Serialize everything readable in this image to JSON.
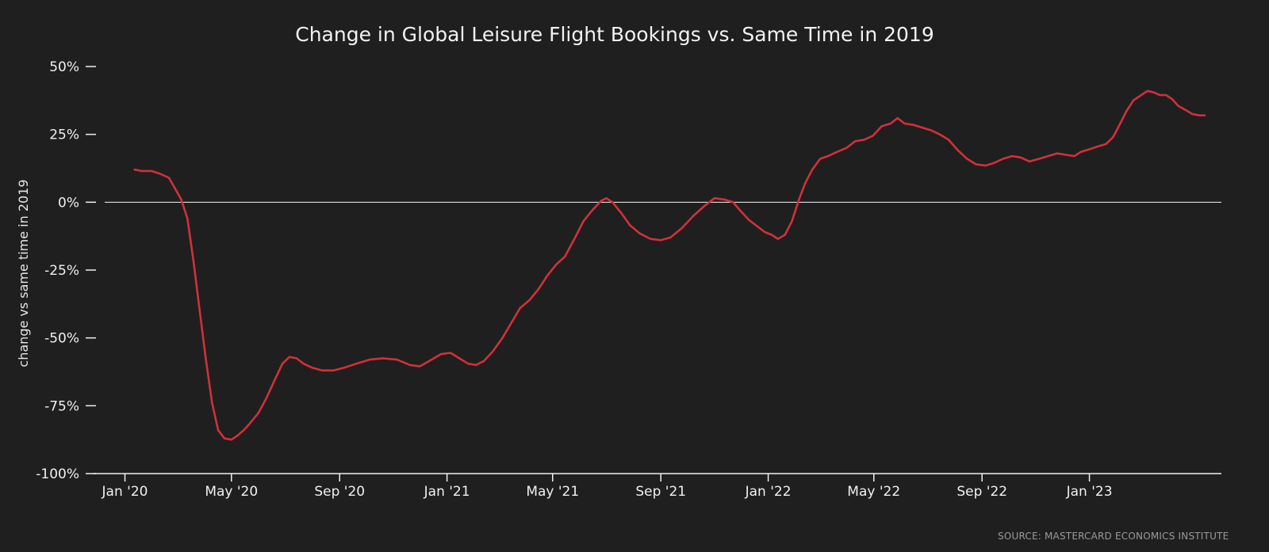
{
  "chart_data": {
    "type": "line",
    "title": "Change in Global Leisure Flight Bookings vs. Same Time in 2019",
    "xlabel": "",
    "ylabel": "change vs same time in 2019",
    "ylim": [
      -100,
      50
    ],
    "xlim": [
      "2019-12-09",
      "2023-05-31"
    ],
    "y_ticks": [
      {
        "value": 50,
        "label": "50%"
      },
      {
        "value": 25,
        "label": "25%"
      },
      {
        "value": 0,
        "label": "0%"
      },
      {
        "value": -25,
        "label": "-25%"
      },
      {
        "value": -50,
        "label": "-50%"
      },
      {
        "value": -75,
        "label": "-75%"
      },
      {
        "value": -100,
        "label": "-100%"
      }
    ],
    "x_ticks": [
      {
        "date": "2020-01-01",
        "label": "Jan '20"
      },
      {
        "date": "2020-05-01",
        "label": "May '20"
      },
      {
        "date": "2020-09-01",
        "label": "Sep '20"
      },
      {
        "date": "2021-01-01",
        "label": "Jan '21"
      },
      {
        "date": "2021-05-01",
        "label": "May '21"
      },
      {
        "date": "2021-09-01",
        "label": "Sep '21"
      },
      {
        "date": "2022-01-01",
        "label": "Jan '22"
      },
      {
        "date": "2022-05-01",
        "label": "May '22"
      },
      {
        "date": "2022-09-01",
        "label": "Sep '22"
      },
      {
        "date": "2023-01-01",
        "label": "Jan '23"
      }
    ],
    "zero_line": true,
    "grid": false,
    "source": "SOURCE: MASTERCARD ECONOMICS INSTITUTE",
    "series": [
      {
        "color": "#d0313a",
        "points": [
          [
            "2020-01-12",
            12
          ],
          [
            "2020-01-20",
            11.5
          ],
          [
            "2020-01-31",
            11.5
          ],
          [
            "2020-02-10",
            10.5
          ],
          [
            "2020-02-20",
            9
          ],
          [
            "2020-02-27",
            5
          ],
          [
            "2020-03-05",
            1
          ],
          [
            "2020-03-12",
            -6
          ],
          [
            "2020-03-19",
            -22
          ],
          [
            "2020-03-26",
            -40
          ],
          [
            "2020-04-02",
            -58
          ],
          [
            "2020-04-09",
            -74
          ],
          [
            "2020-04-16",
            -84
          ],
          [
            "2020-04-23",
            -87
          ],
          [
            "2020-05-01",
            -87.5
          ],
          [
            "2020-05-08",
            -86
          ],
          [
            "2020-05-15",
            -84
          ],
          [
            "2020-05-22",
            -81.5
          ],
          [
            "2020-06-01",
            -77.5
          ],
          [
            "2020-06-10",
            -72
          ],
          [
            "2020-06-20",
            -65
          ],
          [
            "2020-06-28",
            -59.5
          ],
          [
            "2020-07-06",
            -57
          ],
          [
            "2020-07-14",
            -57.5
          ],
          [
            "2020-07-22",
            -59.5
          ],
          [
            "2020-08-01",
            -61
          ],
          [
            "2020-08-12",
            -62
          ],
          [
            "2020-08-25",
            -62
          ],
          [
            "2020-09-06",
            -61
          ],
          [
            "2020-09-20",
            -59.5
          ],
          [
            "2020-10-05",
            -58
          ],
          [
            "2020-10-20",
            -57.5
          ],
          [
            "2020-11-05",
            -58
          ],
          [
            "2020-11-20",
            -60
          ],
          [
            "2020-12-01",
            -60.5
          ],
          [
            "2020-12-12",
            -58.5
          ],
          [
            "2020-12-25",
            -56
          ],
          [
            "2021-01-05",
            -55.5
          ],
          [
            "2021-01-15",
            -57.5
          ],
          [
            "2021-01-25",
            -59.5
          ],
          [
            "2021-02-03",
            -60
          ],
          [
            "2021-02-12",
            -58.5
          ],
          [
            "2021-02-22",
            -55
          ],
          [
            "2021-03-05",
            -50
          ],
          [
            "2021-03-15",
            -44.5
          ],
          [
            "2021-03-25",
            -39
          ],
          [
            "2021-04-05",
            -36
          ],
          [
            "2021-04-15",
            -32
          ],
          [
            "2021-04-25",
            -27
          ],
          [
            "2021-05-05",
            -23
          ],
          [
            "2021-05-15",
            -20
          ],
          [
            "2021-05-25",
            -14
          ],
          [
            "2021-06-05",
            -7
          ],
          [
            "2021-06-15",
            -3
          ],
          [
            "2021-06-25",
            0.5
          ],
          [
            "2021-07-01",
            1.5
          ],
          [
            "2021-07-08",
            0
          ],
          [
            "2021-07-18",
            -4
          ],
          [
            "2021-07-28",
            -8.5
          ],
          [
            "2021-08-08",
            -11.5
          ],
          [
            "2021-08-20",
            -13.5
          ],
          [
            "2021-09-01",
            -14
          ],
          [
            "2021-09-12",
            -13
          ],
          [
            "2021-09-25",
            -9.5
          ],
          [
            "2021-10-08",
            -5
          ],
          [
            "2021-10-20",
            -1.5
          ],
          [
            "2021-11-01",
            1.5
          ],
          [
            "2021-11-12",
            1
          ],
          [
            "2021-11-22",
            0
          ],
          [
            "2021-11-30",
            -3
          ],
          [
            "2021-12-10",
            -6.5
          ],
          [
            "2021-12-20",
            -9
          ],
          [
            "2021-12-28",
            -11
          ],
          [
            "2022-01-05",
            -12
          ],
          [
            "2022-01-12",
            -13.5
          ],
          [
            "2022-01-20",
            -12
          ],
          [
            "2022-01-28",
            -7
          ],
          [
            "2022-02-05",
            1
          ],
          [
            "2022-02-12",
            7
          ],
          [
            "2022-02-20",
            12
          ],
          [
            "2022-03-01",
            16
          ],
          [
            "2022-03-10",
            17
          ],
          [
            "2022-03-20",
            18.5
          ],
          [
            "2022-03-31",
            20
          ],
          [
            "2022-04-10",
            22.5
          ],
          [
            "2022-04-20",
            23
          ],
          [
            "2022-04-30",
            24.5
          ],
          [
            "2022-05-10",
            28
          ],
          [
            "2022-05-20",
            29
          ],
          [
            "2022-05-28",
            31
          ],
          [
            "2022-06-05",
            29
          ],
          [
            "2022-06-15",
            28.5
          ],
          [
            "2022-06-25",
            27.5
          ],
          [
            "2022-07-05",
            26.5
          ],
          [
            "2022-07-15",
            25
          ],
          [
            "2022-07-25",
            23
          ],
          [
            "2022-08-05",
            19
          ],
          [
            "2022-08-15",
            16
          ],
          [
            "2022-08-25",
            14
          ],
          [
            "2022-09-05",
            13.5
          ],
          [
            "2022-09-15",
            14.5
          ],
          [
            "2022-09-25",
            16
          ],
          [
            "2022-10-05",
            17
          ],
          [
            "2022-10-15",
            16.5
          ],
          [
            "2022-10-25",
            15
          ],
          [
            "2022-11-05",
            16
          ],
          [
            "2022-11-15",
            17
          ],
          [
            "2022-11-25",
            18
          ],
          [
            "2022-12-05",
            17.5
          ],
          [
            "2022-12-15",
            17
          ],
          [
            "2022-12-22",
            18.5
          ],
          [
            "2023-01-01",
            19.5
          ],
          [
            "2023-01-10",
            20.5
          ],
          [
            "2023-01-20",
            21.5
          ],
          [
            "2023-01-28",
            24
          ],
          [
            "2023-02-05",
            29
          ],
          [
            "2023-02-12",
            33.5
          ],
          [
            "2023-02-20",
            37.5
          ],
          [
            "2023-03-01",
            39.5
          ],
          [
            "2023-03-08",
            41
          ],
          [
            "2023-03-15",
            40.5
          ],
          [
            "2023-03-22",
            39.5
          ],
          [
            "2023-03-29",
            39.5
          ],
          [
            "2023-04-05",
            38
          ],
          [
            "2023-04-12",
            35.5
          ],
          [
            "2023-04-20",
            34
          ],
          [
            "2023-04-28",
            32.5
          ],
          [
            "2023-05-06",
            32
          ],
          [
            "2023-05-12",
            32
          ]
        ]
      }
    ]
  }
}
